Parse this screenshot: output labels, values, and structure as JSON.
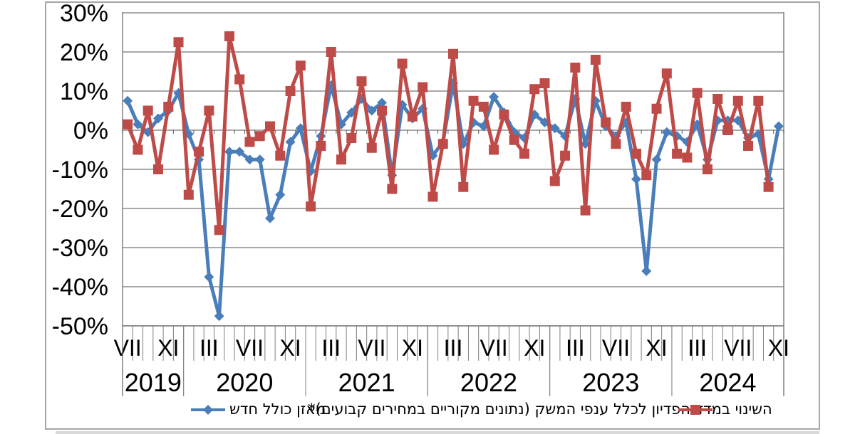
{
  "legend": {
    "blue_label": "מאזן כולל חדש",
    "red_label": "השינוי במדד הפדיון לכלל ענפי המשק (נתונים מקוריים במחירים קבועים)*"
  },
  "chart_data": {
    "type": "line",
    "title": "",
    "xlabel": "",
    "ylabel": "",
    "ylim": [
      -50,
      30
    ],
    "y_ticks": [
      30,
      20,
      10,
      0,
      -10,
      -20,
      -30,
      -40,
      -50
    ],
    "y_tick_suffix": "%",
    "grid": true,
    "legend_position": "bottom",
    "x_start_month": "2019-07",
    "x_end_month": "2024-11",
    "x_tick_labels": [
      {
        "index": 0,
        "label": "VII"
      },
      {
        "index": 4,
        "label": "XI"
      },
      {
        "index": 8,
        "label": "III"
      },
      {
        "index": 12,
        "label": "VII"
      },
      {
        "index": 16,
        "label": "XI"
      },
      {
        "index": 20,
        "label": "III"
      },
      {
        "index": 24,
        "label": "VII"
      },
      {
        "index": 28,
        "label": "XI"
      },
      {
        "index": 32,
        "label": "III"
      },
      {
        "index": 36,
        "label": "VII"
      },
      {
        "index": 40,
        "label": "XI"
      },
      {
        "index": 44,
        "label": "III"
      },
      {
        "index": 48,
        "label": "VII"
      },
      {
        "index": 52,
        "label": "XI"
      },
      {
        "index": 56,
        "label": "III"
      },
      {
        "index": 60,
        "label": "VII"
      },
      {
        "index": 64,
        "label": "XI"
      }
    ],
    "year_spans": [
      {
        "label": "2019",
        "from": 0,
        "to": 5
      },
      {
        "label": "2020",
        "from": 6,
        "to": 17
      },
      {
        "label": "2021",
        "from": 18,
        "to": 29
      },
      {
        "label": "2022",
        "from": 30,
        "to": 41
      },
      {
        "label": "2023",
        "from": 42,
        "to": 53
      },
      {
        "label": "2024",
        "from": 54,
        "to": 64
      }
    ],
    "series": [
      {
        "name": "מאזן כולל חדש",
        "color": "#4a7ebb",
        "marker": "diamond",
        "values": [
          7.5,
          1.5,
          -0.5,
          3,
          5,
          9.5,
          -1,
          -7.5,
          -37.5,
          -47.5,
          -5.5,
          -5.5,
          -7.5,
          -7.5,
          -22.5,
          -16.5,
          -3,
          0.5,
          -10.5,
          -1.5,
          11.5,
          1.5,
          4.5,
          8,
          5,
          7,
          -11.5,
          6.5,
          3,
          5.5,
          -6.5,
          -3,
          12,
          -3.5,
          2,
          1,
          8.5,
          4.5,
          -0.5,
          -2,
          4,
          2,
          0.5,
          -1.5,
          8,
          -3.5,
          7.5,
          1,
          -1.5,
          2,
          -12.5,
          -36,
          -7.5,
          -0.5,
          -1.5,
          -3,
          1.5,
          -7.5,
          2.5,
          2.5,
          2.5,
          -2,
          -1,
          -12.5,
          1
        ]
      },
      {
        "name": "השינוי במדד הפדיון לכלל ענפי המשק (נתונים מקוריים במחירים קבועים)*",
        "color": "#be4b48",
        "marker": "square",
        "values": [
          1.5,
          -5,
          5,
          -10,
          6,
          22.5,
          -16.5,
          -5.5,
          5,
          -25.5,
          24,
          13,
          -3,
          -1.5,
          1,
          -6.5,
          10,
          16.5,
          -19.5,
          -4,
          20,
          -7.5,
          -2,
          12.5,
          -4.5,
          5,
          -15,
          17,
          3.5,
          11,
          -17,
          -3.5,
          19.5,
          -14.5,
          7.5,
          6,
          -5,
          4,
          -2.5,
          -6,
          10.5,
          12,
          -13,
          -6.5,
          16,
          -20.5,
          18,
          2,
          -3.5,
          6,
          -6,
          -11.5,
          5.5,
          14.5,
          -6,
          -7,
          9.5,
          -10,
          8,
          0,
          7.5,
          -4,
          7.5,
          -14.5,
          null
        ]
      }
    ],
    "colors": {
      "gridline": "#8c8c8c",
      "axis": "#808080",
      "tick": "#595959",
      "text": "#000000",
      "border": "#a6a6a6"
    }
  }
}
